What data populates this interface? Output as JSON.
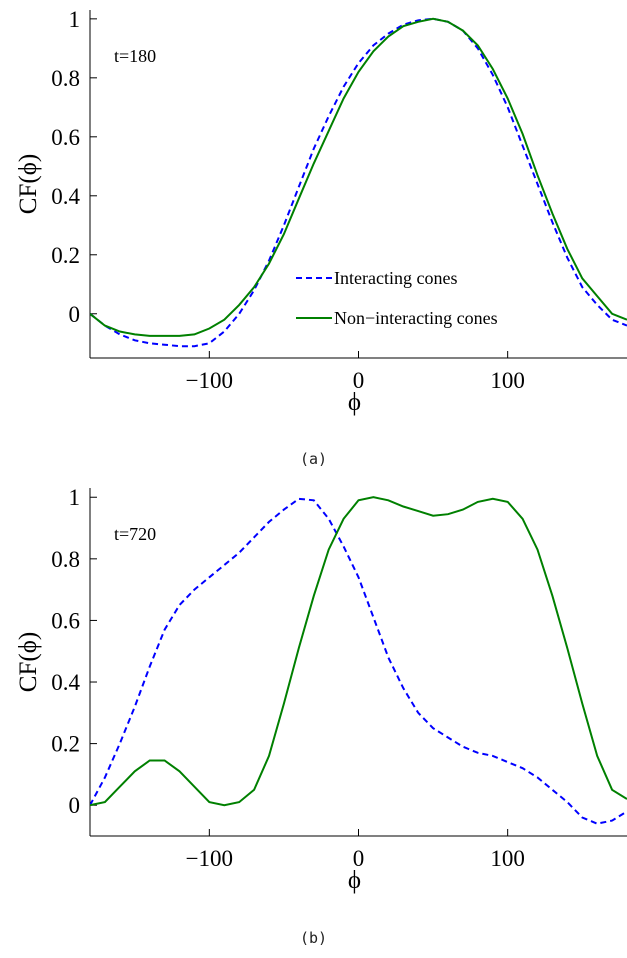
{
  "chart_data": [
    {
      "type": "line",
      "caption": "(a)",
      "annotation": "t=180",
      "xlabel": "ϕ",
      "ylabel": "CF(ϕ)",
      "xlim": [
        -180,
        180
      ],
      "ylim": [
        -0.15,
        1.03
      ],
      "xticks": [
        -100,
        0,
        100
      ],
      "xtick_labels": [
        "−100",
        "0",
        "100"
      ],
      "yticks": [
        0,
        0.2,
        0.4,
        0.6,
        0.8,
        1
      ],
      "ytick_labels": [
        "0",
        "0.2",
        "0.4",
        "0.6",
        "0.8",
        "1"
      ],
      "grid": false,
      "legend_position": "lower-center",
      "series": [
        {
          "name": "Interacting cones",
          "color": "#0000ff",
          "style": "dashed",
          "x": [
            -180,
            -170,
            -160,
            -150,
            -140,
            -130,
            -120,
            -110,
            -100,
            -90,
            -80,
            -70,
            -60,
            -50,
            -40,
            -30,
            -20,
            -10,
            0,
            10,
            20,
            30,
            40,
            50,
            60,
            70,
            80,
            90,
            100,
            110,
            120,
            130,
            140,
            150,
            160,
            170,
            180
          ],
          "y": [
            0.0,
            -0.04,
            -0.07,
            -0.09,
            -0.1,
            -0.105,
            -0.11,
            -0.11,
            -0.1,
            -0.06,
            0.0,
            0.08,
            0.18,
            0.3,
            0.43,
            0.56,
            0.67,
            0.77,
            0.85,
            0.91,
            0.95,
            0.98,
            0.995,
            1.0,
            0.99,
            0.96,
            0.9,
            0.81,
            0.7,
            0.57,
            0.44,
            0.31,
            0.19,
            0.09,
            0.03,
            -0.02,
            -0.04
          ]
        },
        {
          "name": "Non−interacting cones",
          "color": "#008000",
          "style": "solid",
          "x": [
            -180,
            -170,
            -160,
            -150,
            -140,
            -130,
            -120,
            -110,
            -100,
            -90,
            -80,
            -70,
            -60,
            -50,
            -40,
            -30,
            -20,
            -10,
            0,
            10,
            20,
            30,
            40,
            50,
            60,
            70,
            80,
            90,
            100,
            110,
            120,
            130,
            140,
            150,
            160,
            170,
            180
          ],
          "y": [
            0.0,
            -0.04,
            -0.06,
            -0.07,
            -0.075,
            -0.075,
            -0.075,
            -0.07,
            -0.05,
            -0.02,
            0.03,
            0.09,
            0.17,
            0.27,
            0.39,
            0.51,
            0.62,
            0.73,
            0.82,
            0.89,
            0.94,
            0.975,
            0.99,
            1.0,
            0.99,
            0.96,
            0.91,
            0.83,
            0.73,
            0.61,
            0.47,
            0.34,
            0.22,
            0.12,
            0.06,
            0.0,
            -0.02
          ]
        }
      ]
    },
    {
      "type": "line",
      "caption": "(b)",
      "annotation": "t=720",
      "xlabel": "ϕ",
      "ylabel": "CF(ϕ)",
      "xlim": [
        -180,
        180
      ],
      "ylim": [
        -0.1,
        1.03
      ],
      "xticks": [
        -100,
        0,
        100
      ],
      "xtick_labels": [
        "−100",
        "0",
        "100"
      ],
      "yticks": [
        0,
        0.2,
        0.4,
        0.6,
        0.8,
        1
      ],
      "ytick_labels": [
        "0",
        "0.2",
        "0.4",
        "0.6",
        "0.8",
        "1"
      ],
      "grid": false,
      "series": [
        {
          "color": "#0000ff",
          "style": "dashed",
          "x": [
            -180,
            -170,
            -160,
            -150,
            -140,
            -130,
            -120,
            -110,
            -100,
            -90,
            -80,
            -70,
            -60,
            -50,
            -40,
            -30,
            -20,
            -10,
            0,
            10,
            20,
            30,
            40,
            50,
            60,
            70,
            80,
            90,
            100,
            110,
            120,
            130,
            140,
            150,
            160,
            170,
            180
          ],
          "y": [
            0.0,
            0.09,
            0.2,
            0.32,
            0.45,
            0.57,
            0.65,
            0.7,
            0.74,
            0.78,
            0.82,
            0.87,
            0.92,
            0.96,
            0.995,
            0.99,
            0.93,
            0.84,
            0.74,
            0.61,
            0.48,
            0.38,
            0.3,
            0.25,
            0.22,
            0.19,
            0.17,
            0.16,
            0.14,
            0.12,
            0.09,
            0.05,
            0.01,
            -0.04,
            -0.06,
            -0.05,
            -0.02
          ]
        },
        {
          "color": "#008000",
          "style": "solid",
          "x": [
            -180,
            -170,
            -160,
            -150,
            -140,
            -130,
            -120,
            -110,
            -100,
            -90,
            -80,
            -70,
            -60,
            -50,
            -40,
            -30,
            -20,
            -10,
            0,
            10,
            20,
            30,
            40,
            50,
            60,
            70,
            80,
            90,
            100,
            110,
            120,
            130,
            140,
            150,
            160,
            170,
            180
          ],
          "y": [
            0.0,
            0.01,
            0.06,
            0.11,
            0.145,
            0.145,
            0.11,
            0.06,
            0.01,
            0.0,
            0.01,
            0.05,
            0.16,
            0.33,
            0.51,
            0.68,
            0.83,
            0.93,
            0.99,
            1.0,
            0.99,
            0.97,
            0.955,
            0.94,
            0.945,
            0.96,
            0.985,
            0.995,
            0.985,
            0.93,
            0.83,
            0.68,
            0.51,
            0.33,
            0.16,
            0.05,
            0.02
          ]
        }
      ]
    }
  ]
}
